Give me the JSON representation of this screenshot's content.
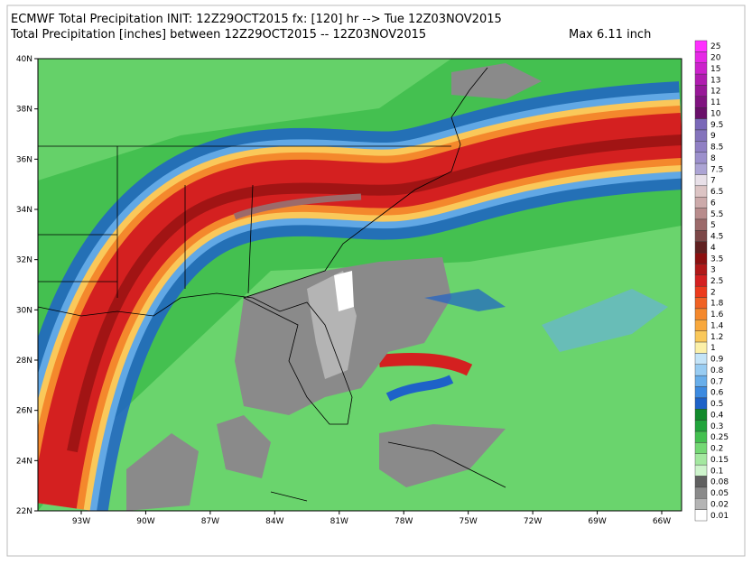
{
  "header": {
    "line1": "ECMWF Total Precipitation INIT: 12Z29OCT2015 fx: [120] hr --> Tue 12Z03NOV2015",
    "line2": "Total Precipitation [inches] between 12Z29OCT2015 -- 12Z03NOV2015",
    "max": "Max 6.11 inch"
  },
  "map": {
    "lat_labels": [
      "40N",
      "38N",
      "36N",
      "34N",
      "32N",
      "30N",
      "28N",
      "26N",
      "24N",
      "22N"
    ],
    "lon_labels": [
      "93W",
      "90W",
      "87W",
      "84W",
      "81W",
      "78W",
      "75W",
      "72W",
      "69W",
      "66W"
    ]
  },
  "colorbar": {
    "levels": [
      25,
      20,
      15,
      13,
      12,
      11,
      10,
      9.5,
      9,
      8.5,
      8,
      7.5,
      7,
      6.5,
      6,
      5.5,
      5,
      4.5,
      4,
      3.5,
      3,
      2.5,
      2,
      1.8,
      1.6,
      1.4,
      1.2,
      1,
      0.9,
      0.8,
      0.7,
      0.6,
      0.5,
      0.4,
      0.3,
      0.25,
      0.2,
      0.15,
      0.1,
      0.08,
      0.05,
      0.02,
      0.01
    ],
    "colors": [
      "#ff30ff",
      "#e628e6",
      "#cc22cc",
      "#b01cb0",
      "#981898",
      "#801480",
      "#6a106a",
      "#7a68b8",
      "#8474bc",
      "#9080c4",
      "#9c90cc",
      "#aca4d4",
      "#e8e0e8",
      "#dcc4c4",
      "#ccaaaa",
      "#b88c8c",
      "#9c6a6a",
      "#7c4848",
      "#602020",
      "#8c1010",
      "#b01818",
      "#d42020",
      "#ec3a1c",
      "#f06224",
      "#f4882c",
      "#f8a83c",
      "#fac85a",
      "#fcf0a8",
      "#c4e4f8",
      "#98ccf2",
      "#68aeea",
      "#3c8ae0",
      "#1e62c8",
      "#128a2c",
      "#22a43c",
      "#44c050",
      "#74d874",
      "#a4e8a0",
      "#cef4cc",
      "#606060",
      "#8a8a8a",
      "#b4b4b4",
      "#ffffff"
    ]
  }
}
